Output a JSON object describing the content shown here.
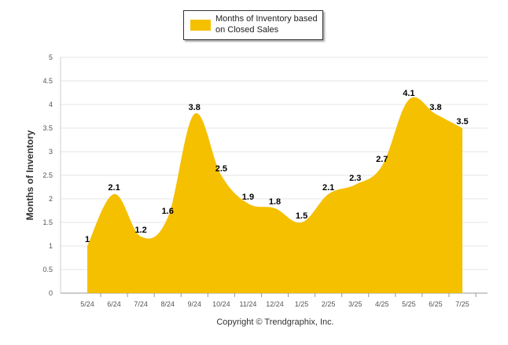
{
  "chart_data": {
    "type": "area",
    "categories": [
      "5/24",
      "6/24",
      "7/24",
      "8/24",
      "9/24",
      "10/24",
      "11/24",
      "12/24",
      "1/25",
      "2/25",
      "3/25",
      "4/25",
      "5/25",
      "6/25",
      "7/25"
    ],
    "series": [
      {
        "name": "Months of Inventory based on Closed Sales",
        "values": [
          1,
          2.1,
          1.2,
          1.6,
          3.8,
          2.5,
          1.9,
          1.8,
          1.5,
          2.1,
          2.3,
          2.7,
          4.1,
          3.8,
          3.5
        ],
        "color": "#F5C000"
      }
    ],
    "data_labels": [
      "1",
      "2.1",
      "1.2",
      "1.6",
      "3.8",
      "2.5",
      "1.9",
      "1.8",
      "1.5",
      "2.1",
      "2.3",
      "2.7",
      "4.1",
      "3.8",
      "3.5"
    ],
    "ylabel": "Months of Inventory",
    "xlabel": "",
    "ylim": [
      0,
      5
    ],
    "yticks": [
      "0",
      "0.5",
      "1",
      "1.5",
      "2",
      "2.5",
      "3",
      "3.5",
      "4",
      "4.5",
      "5"
    ],
    "grid": true,
    "legend_position": "top-center"
  },
  "legend": {
    "label": "Months of Inventory based on Closed Sales"
  },
  "footer": {
    "copyright": "Copyright © Trendgraphix, Inc."
  },
  "colors": {
    "area": "#F5C000",
    "grid": "#e6e6e6",
    "axis_text": "#555555"
  }
}
